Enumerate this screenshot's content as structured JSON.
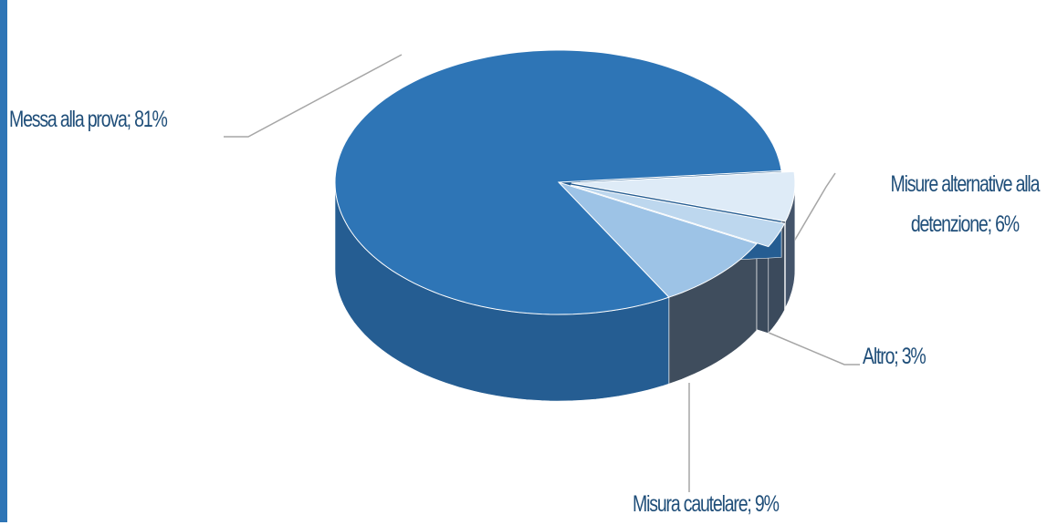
{
  "chart_data": {
    "type": "pie3d",
    "values": [
      6,
      3,
      9,
      81
    ],
    "value_labels": [
      "Misure alternative alla detenzione; 6%",
      "Altro; 3%",
      "Misura cautelare; 9%",
      "Messa alla prova; 81%"
    ],
    "colors": [
      "#deebf7",
      "#bdd7ee",
      "#9dc3e6",
      "#2e75b6"
    ],
    "side_colors": [
      "#44546a",
      "#3b4a5c",
      "#3f4d5d",
      "#255d92"
    ],
    "exploded": [
      true,
      true,
      false,
      false
    ]
  }
}
